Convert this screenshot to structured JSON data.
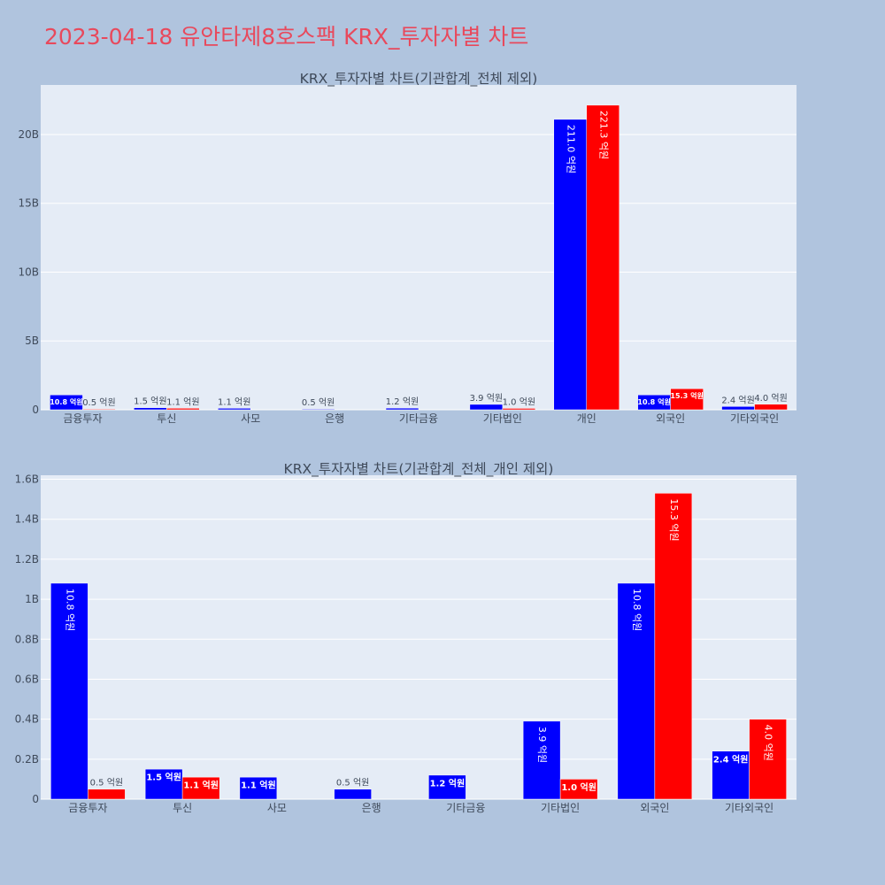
{
  "page": {
    "title": "2023-04-18 유안타제8호스팩 KRX_투자자별 차트"
  },
  "colors": {
    "buy": "#0000ff",
    "sell": "#ff0000",
    "plot_bg": "#e5ecf6",
    "page_bg": "#b0c4de",
    "title": "#e8495c"
  },
  "chart_data": [
    {
      "type": "bar",
      "title": "KRX_투자자별 차트(기관합계_전체 제외)",
      "categories": [
        "금융투자",
        "투신",
        "사모",
        "은행",
        "기타금융",
        "기타법인",
        "개인",
        "외국인",
        "기타외국인"
      ],
      "series": [
        {
          "values": [
            1.08,
            0.15,
            0.11,
            0.05,
            0.12,
            0.39,
            21.1,
            1.08,
            0.24
          ],
          "labels": [
            "10.8 억원",
            "1.5 억원",
            "1.1 억원",
            "0.5 억원",
            "1.2 억원",
            "3.9 억원",
            "211.0 억원",
            "10.8 억원",
            "2.4 억원"
          ]
        },
        {
          "values": [
            0.05,
            0.11,
            null,
            null,
            null,
            0.1,
            22.13,
            1.53,
            0.4
          ],
          "labels": [
            "0.5 억원",
            "1.1 억원",
            "",
            "",
            "",
            "1.0 억원",
            "221.3 억원",
            "15.3 억원",
            "4.0 억원"
          ]
        }
      ],
      "ylim": [
        0,
        23.6
      ],
      "y_ticks": [
        {
          "value": 0,
          "label": "0"
        },
        {
          "value": 5,
          "label": "5B"
        },
        {
          "value": 10,
          "label": "10B"
        },
        {
          "value": 15,
          "label": "15B"
        },
        {
          "value": 20,
          "label": "20B"
        }
      ],
      "unit": "B",
      "grid": true,
      "legend": "none"
    },
    {
      "type": "bar",
      "title": "KRX_투자자별 차트(기관합계_전체_개인 제외)",
      "categories": [
        "금융투자",
        "투신",
        "사모",
        "은행",
        "기타금융",
        "기타법인",
        "외국인",
        "기타외국인"
      ],
      "series": [
        {
          "values": [
            1.08,
            0.15,
            0.11,
            0.05,
            0.12,
            0.39,
            1.08,
            0.24
          ],
          "labels": [
            "10.8 억원",
            "1.5 억원",
            "1.1 억원",
            "0.5 억원",
            "1.2 억원",
            "3.9 억원",
            "10.8 억원",
            "2.4 억원"
          ]
        },
        {
          "values": [
            0.05,
            0.11,
            null,
            null,
            null,
            0.1,
            1.53,
            0.4
          ],
          "labels": [
            "0.5 억원",
            "1.1 억원",
            "",
            "",
            "",
            "1.0 억원",
            "15.3 억원",
            "4.0 억원"
          ]
        }
      ],
      "ylim": [
        0,
        1.62
      ],
      "y_ticks": [
        {
          "value": 0,
          "label": "0"
        },
        {
          "value": 0.2,
          "label": "0.2B"
        },
        {
          "value": 0.4,
          "label": "0.4B"
        },
        {
          "value": 0.6,
          "label": "0.6B"
        },
        {
          "value": 0.8,
          "label": "0.8B"
        },
        {
          "value": 1.0,
          "label": "1B"
        },
        {
          "value": 1.2,
          "label": "1.2B"
        },
        {
          "value": 1.4,
          "label": "1.4B"
        },
        {
          "value": 1.6,
          "label": "1.6B"
        }
      ],
      "unit": "B",
      "grid": true,
      "legend": "none"
    }
  ]
}
